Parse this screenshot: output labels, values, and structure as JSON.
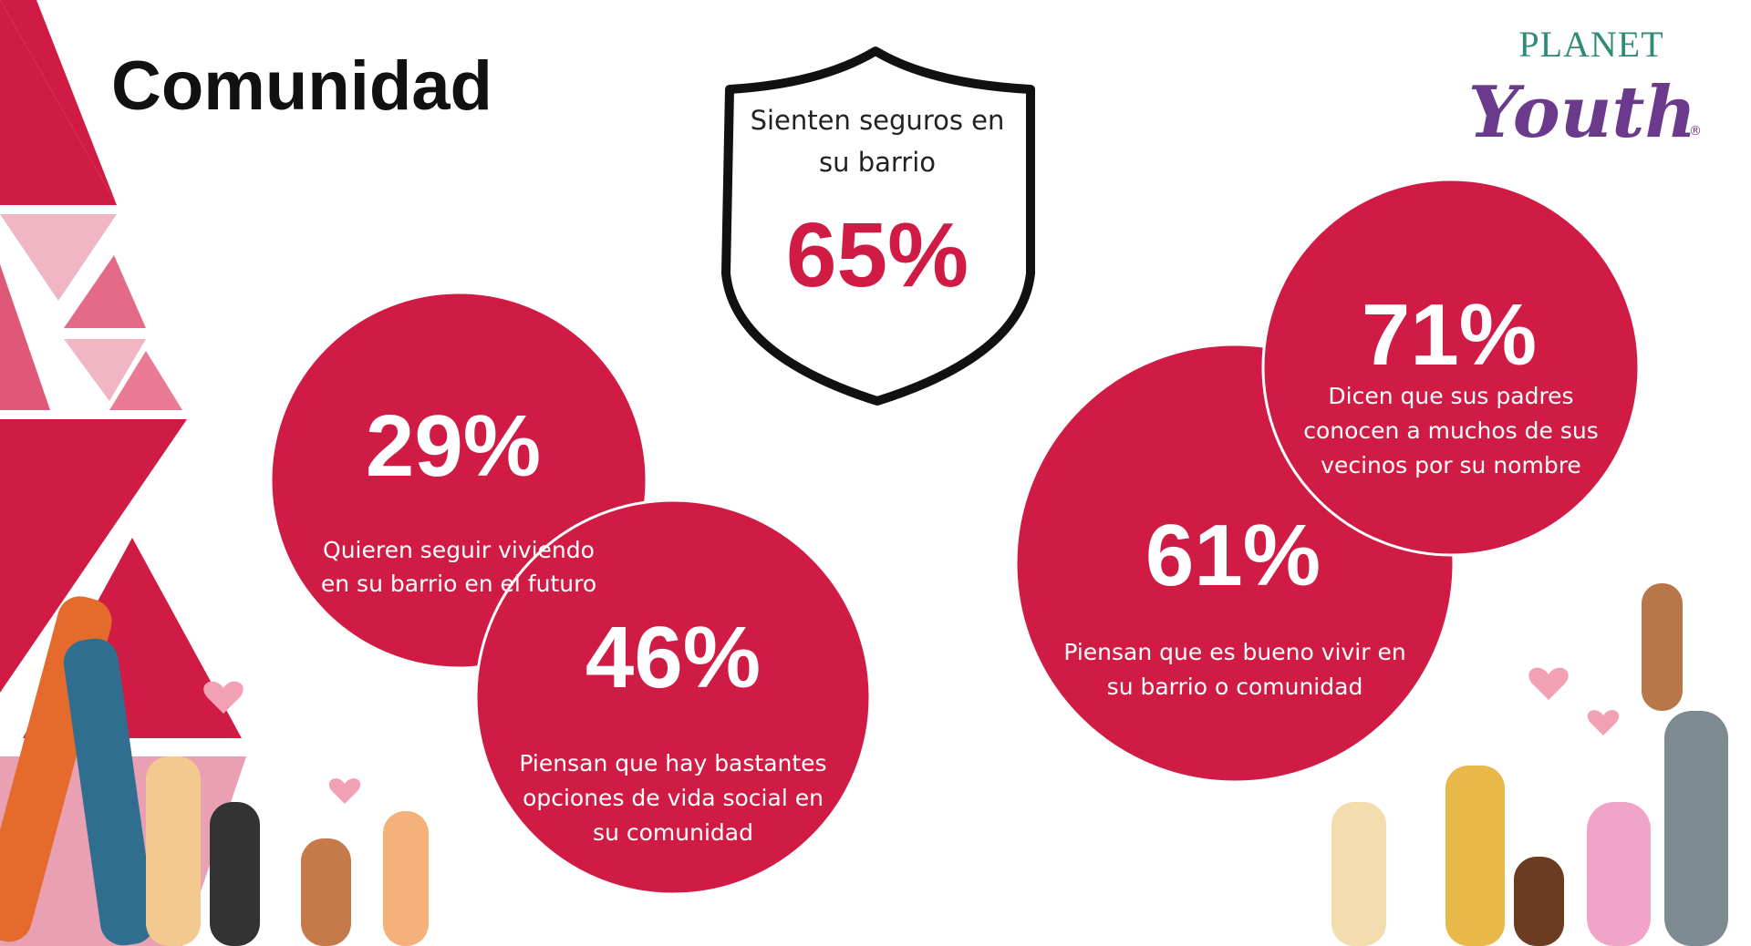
{
  "title": "Comunidad",
  "logo": {
    "line1": "PLANET",
    "line2": "Youth",
    "mark": "®"
  },
  "shield": {
    "lines": [
      "Sienten seguros en",
      "su barrio"
    ],
    "value": "65%"
  },
  "stats": [
    {
      "value": "29%",
      "lines": [
        "Quieren seguir viviendo",
        "en su barrio en el futuro"
      ]
    },
    {
      "value": "46%",
      "lines": [
        "Piensan que hay bastantes",
        "opciones de vida social en",
        "su comunidad"
      ]
    },
    {
      "value": "61%",
      "lines": [
        "Piensan que es bueno vivir en",
        "su barrio o comunidad"
      ]
    },
    {
      "value": "71%",
      "lines": [
        "Dicen que sus padres",
        "conocen a muchos de sus",
        "vecinos por su nombre"
      ]
    }
  ]
}
